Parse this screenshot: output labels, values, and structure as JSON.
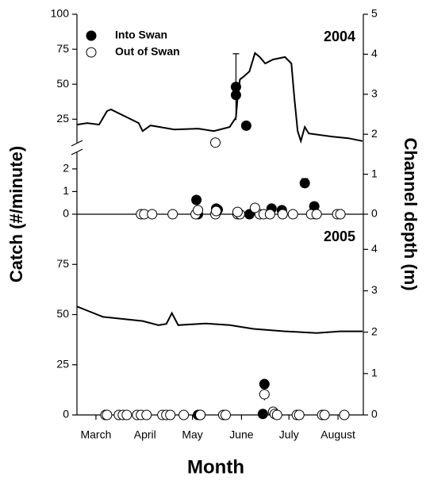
{
  "shared": {
    "y_label": "Catch (#/minute)",
    "y2_label": "Channel depth (m)"
  },
  "chart_data": [
    {
      "type": "scatter",
      "label": "2004",
      "xlim": [
        62,
        243
      ],
      "y_segments": [
        {
          "ylim": [
            0,
            2.8
          ],
          "yticks": [
            0,
            1,
            2
          ]
        },
        {
          "ylim": [
            7,
            100
          ],
          "yticks": [
            25,
            50,
            75,
            100
          ]
        }
      ],
      "y2lim": [
        0,
        5
      ],
      "y2ticks": [
        0,
        1,
        2,
        3,
        4,
        5
      ],
      "series": [
        {
          "name": "Into Swan",
          "marker": "filled",
          "color": "#000000",
          "x": [
            162.5,
            162.5,
            169,
            137.5,
            138.5,
            150,
            151,
            171,
            185,
            191.5,
            206,
            212,
            213
          ],
          "values": [
            48.1,
            42.3,
            20.4,
            0.63,
            0,
            0.25,
            0.2,
            0,
            0.25,
            0.18,
            1.37,
            0.35,
            0
          ],
          "errors": [
            23.7,
            null,
            null,
            null,
            null,
            null,
            null,
            null,
            null,
            null,
            0.2,
            null,
            null
          ]
        },
        {
          "name": "Out of Swan",
          "marker": "open",
          "color": "#000000",
          "x": [
            149.5,
            102.5,
            104.5,
            109.5,
            122.5,
            137,
            149.5,
            163.5,
            165,
            177.5,
            180,
            184,
            192,
            198.5,
            210,
            213.5,
            226.5,
            228.5,
            174.5,
            150,
            138.5,
            163.5
          ],
          "values": [
            8.3,
            0,
            0,
            0,
            0,
            0,
            0,
            0,
            0,
            0,
            0,
            0,
            0,
            0,
            0,
            0,
            0,
            0,
            0.28,
            0.14,
            0.18,
            0.1
          ]
        },
        {
          "type": "line",
          "axis": "y2",
          "color": "#000000",
          "x": [
            62,
            68.5,
            76,
            81,
            83.5,
            101,
            103.5,
            108.5,
            123.5,
            138.5,
            148.5,
            158.5,
            162.5,
            163.5,
            165,
            167,
            171,
            174.5,
            177.5,
            181,
            186,
            193.5,
            197.5,
            199.5,
            201.5,
            203.5,
            206,
            208.5,
            223.5,
            233.5,
            242.5
          ],
          "values": [
            2.24,
            2.28,
            2.24,
            2.58,
            2.62,
            2.28,
            2.08,
            2.22,
            2.12,
            2.14,
            2.08,
            2.18,
            2.42,
            2.88,
            3.37,
            3.43,
            3.57,
            4.03,
            3.93,
            3.77,
            3.87,
            3.93,
            3.77,
            2.88,
            2.08,
            1.83,
            2.18,
            2.02,
            1.94,
            1.9,
            1.83
          ]
        }
      ]
    },
    {
      "type": "scatter",
      "label": "2005",
      "x_label": "Month",
      "xlim": [
        62,
        243
      ],
      "xticks": [
        {
          "value": 74,
          "label": "March"
        },
        {
          "value": 105,
          "label": "April"
        },
        {
          "value": 135,
          "label": "May"
        },
        {
          "value": 166,
          "label": "June"
        },
        {
          "value": 196,
          "label": "July"
        },
        {
          "value": 227,
          "label": "August"
        }
      ],
      "ylim": [
        0,
        100
      ],
      "yticks": [
        0,
        25,
        50,
        75
      ],
      "y2lim": [
        0,
        4.85
      ],
      "y2ticks": [
        0,
        1,
        2,
        3,
        4
      ],
      "series": [
        {
          "marker": "filled",
          "color": "#000000",
          "x": [
            138.5,
            140,
            179.5,
            180.5
          ],
          "values": [
            0,
            0,
            0.5,
            15.4
          ],
          "errors": [
            null,
            null,
            null,
            1.5
          ]
        },
        {
          "marker": "open",
          "color": "#000000",
          "x": [
            180.5,
            186,
            187,
            80,
            81,
            88.5,
            91,
            93.5,
            100,
            102.5,
            106,
            116,
            118.5,
            121,
            129.5,
            140,
            154.5,
            156,
            188.5,
            201,
            202.5,
            217,
            218.5,
            231
          ],
          "values": [
            10.3,
            1.6,
            0.5,
            0,
            0,
            0,
            0,
            0,
            0,
            0,
            0,
            0,
            0,
            0,
            0,
            0,
            0,
            0,
            0,
            0,
            0,
            0,
            0,
            0
          ],
          "errors": [
            3,
            null,
            null,
            null,
            null,
            null,
            null,
            null,
            null,
            null,
            null,
            null,
            null,
            null,
            null,
            null,
            null,
            null,
            null,
            null,
            null,
            null,
            null,
            null
          ]
        },
        {
          "type": "line",
          "axis": "y2",
          "color": "#000000",
          "x": [
            62,
            68.5,
            78.5,
            103.5,
            113.5,
            118.5,
            122,
            126,
            143.5,
            158.5,
            173.5,
            193.5,
            213.5,
            228.5,
            242.5
          ],
          "values": [
            2.62,
            2.52,
            2.37,
            2.27,
            2.17,
            2.2,
            2.46,
            2.17,
            2.21,
            2.17,
            2.08,
            2.02,
            1.98,
            2.02,
            2.02
          ]
        }
      ]
    }
  ]
}
